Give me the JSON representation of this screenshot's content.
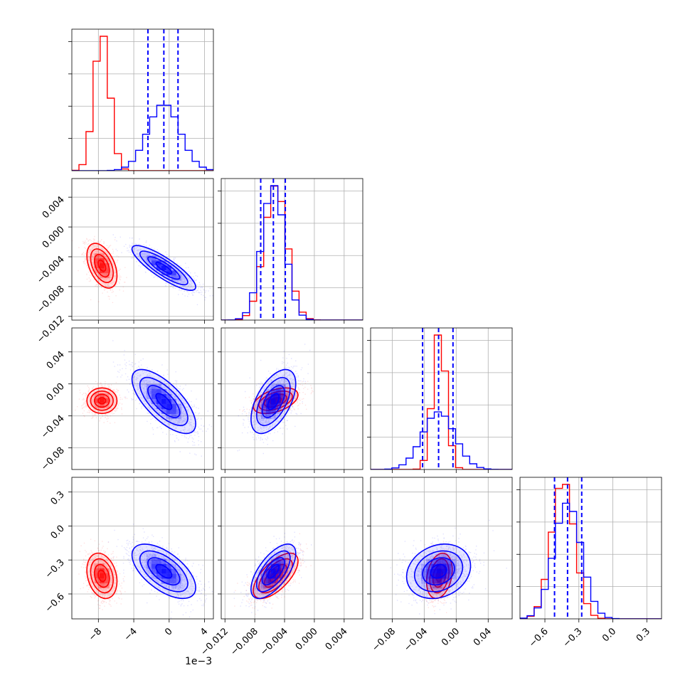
{
  "chart_data": {
    "type": "corner",
    "title": "",
    "dims": 4,
    "colors": {
      "series_a": "#ff0000",
      "series_b": "#0000ff"
    },
    "axes": [
      {
        "range": [
          -11,
          5
        ],
        "ticks": [
          -8,
          -4,
          0,
          4
        ],
        "tick_labels": [
          "−8",
          "−4",
          "0",
          "4"
        ],
        "offset_label": "1e−3"
      },
      {
        "range": [
          -0.0125,
          0.0065
        ],
        "ticks": [
          -0.012,
          -0.008,
          -0.004,
          0.0,
          0.004
        ],
        "tick_labels": [
          "−0.012",
          "−0.008",
          "−0.004",
          "0.000",
          "0.004"
        ]
      },
      {
        "range": [
          -0.107,
          0.07
        ],
        "ticks": [
          -0.08,
          -0.04,
          0.0,
          0.04
        ],
        "tick_labels": [
          "−0.08",
          "−0.04",
          "0.00",
          "0.04"
        ]
      },
      {
        "range": [
          -0.82,
          0.43
        ],
        "ticks": [
          -0.6,
          -0.3,
          0.0,
          0.3
        ],
        "tick_labels": [
          "−0.6",
          "−0.3",
          "0.0",
          "0.3"
        ]
      }
    ],
    "series": [
      {
        "color": "#ff0000",
        "mean": [
          -7.6,
          -0.0052,
          -0.021,
          -0.44
        ],
        "sd": [
          0.85,
          0.0015,
          0.008,
          0.1
        ]
      },
      {
        "color": "#0000ff",
        "mean": [
          -0.6,
          -0.0055,
          -0.022,
          -0.4
        ],
        "sd": [
          1.8,
          0.0015,
          0.02,
          0.12
        ],
        "quantiles_16_50_84": [
          [
            -2.4,
            -0.6,
            1.0
          ],
          [
            -0.0072,
            -0.0055,
            -0.0039
          ],
          [
            -0.042,
            -0.022,
            -0.004
          ],
          [
            -0.515,
            -0.4,
            -0.275
          ]
        ]
      }
    ],
    "correlations": [
      {
        "pair": [
          0,
          1
        ],
        "series_a": -0.45,
        "series_b": -0.85
      },
      {
        "pair": [
          0,
          2
        ],
        "series_a": 0.0,
        "series_b": -0.7
      },
      {
        "pair": [
          1,
          2
        ],
        "series_a": 0.45,
        "series_b": 0.55
      },
      {
        "pair": [
          0,
          3
        ],
        "series_a": -0.25,
        "series_b": -0.6
      },
      {
        "pair": [
          1,
          3
        ],
        "series_a": 0.65,
        "series_b": 0.65
      },
      {
        "pair": [
          2,
          3
        ],
        "series_a": 0.25,
        "series_b": 0.2
      }
    ],
    "histogram_bins": 20,
    "contour_levels": [
      0.5,
      1.0,
      1.5,
      2.0
    ],
    "grid": true,
    "legend": "none"
  }
}
